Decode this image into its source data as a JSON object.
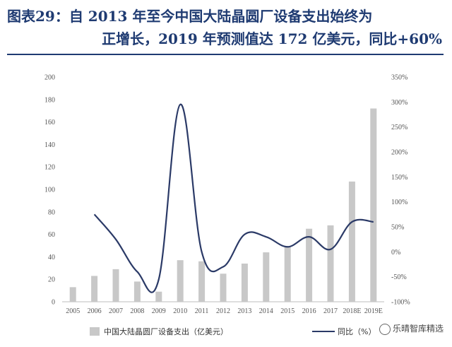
{
  "title": {
    "line1": "图表29：自 2013 年至今中国大陆晶圆厂设备支出始终为",
    "line2": "正增长，2019 年预测值达 172 亿美元，同比+60%"
  },
  "watermark": "乐晴智库精选",
  "colors": {
    "title": "#1f3b72",
    "bar": "#c8c8c8",
    "line": "#2b3a67"
  },
  "chart_data": {
    "type": "bar+line",
    "categories": [
      "2005",
      "2006",
      "2007",
      "2008",
      "2009",
      "2010",
      "2011",
      "2012",
      "2013",
      "2014",
      "2015",
      "2016",
      "2017",
      "2018E",
      "2019E"
    ],
    "series": [
      {
        "name": "中国大陆晶圆厂设备支出（亿美元）",
        "type": "bar",
        "axis": "left",
        "values": [
          13,
          23,
          29,
          18,
          9,
          37,
          36,
          25,
          34,
          44,
          49,
          65,
          68,
          107,
          172
        ]
      },
      {
        "name": "同比（%）",
        "type": "line",
        "axis": "right",
        "values": [
          null,
          75,
          25,
          -40,
          -55,
          295,
          0,
          -30,
          35,
          30,
          10,
          30,
          5,
          60,
          60
        ]
      }
    ],
    "left_axis": {
      "min": 0,
      "max": 200,
      "ticks": [
        "0",
        "20",
        "40",
        "60",
        "80",
        "100",
        "120",
        "140",
        "160",
        "180",
        "200"
      ]
    },
    "right_axis": {
      "min": -100,
      "max": 350,
      "ticks": [
        "-100%",
        "-50%",
        "0%",
        "50%",
        "100%",
        "150%",
        "200%",
        "250%",
        "300%",
        "350%"
      ]
    },
    "legend": {
      "placement": "bottom",
      "bar_label": "中国大陆晶圆厂设备支出（亿美元）",
      "line_label": "同比（%）"
    },
    "grid": false
  }
}
